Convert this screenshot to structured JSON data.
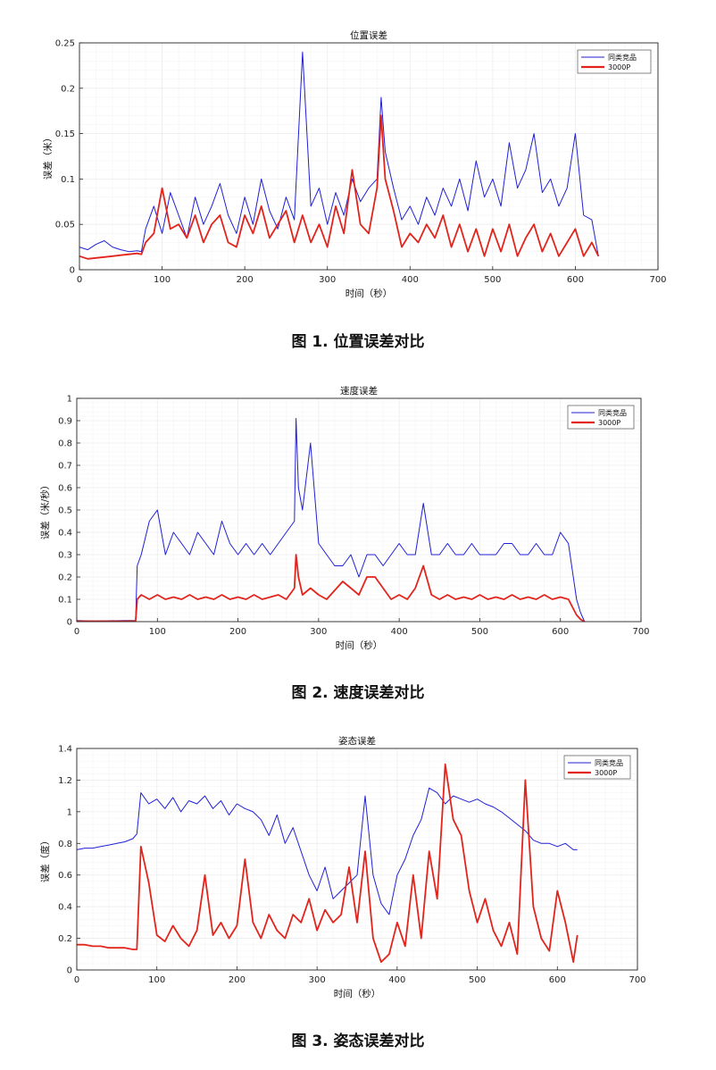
{
  "colors": {
    "competitor": "#1f1fd6",
    "product": "#e2241c",
    "grid": "#ececec",
    "axis": "#262626"
  },
  "chart_data": [
    {
      "type": "line",
      "title": "位置误差",
      "xlabel": "时间（秒）",
      "ylabel": "误差（米）",
      "xlim": [
        0,
        700
      ],
      "ylim": [
        0,
        0.25
      ],
      "xticks": [
        "0",
        "100",
        "200",
        "300",
        "400",
        "500",
        "600",
        "700"
      ],
      "yticks": [
        "0",
        "0.05",
        "0.1",
        "0.15",
        "0.2",
        "0.25"
      ],
      "grid": true,
      "legend": "top-right",
      "series": [
        {
          "name": "同类竞品",
          "color": "#1f1fd6",
          "x": [
            0,
            10,
            20,
            30,
            40,
            50,
            60,
            70,
            75,
            80,
            90,
            100,
            110,
            120,
            130,
            140,
            150,
            160,
            170,
            180,
            190,
            200,
            210,
            220,
            230,
            240,
            250,
            260,
            270,
            280,
            290,
            300,
            310,
            320,
            330,
            340,
            350,
            360,
            365,
            370,
            380,
            390,
            400,
            410,
            420,
            430,
            440,
            450,
            460,
            470,
            480,
            490,
            500,
            510,
            520,
            530,
            540,
            550,
            560,
            570,
            580,
            590,
            600,
            610,
            620,
            628
          ],
          "y": [
            0.025,
            0.022,
            0.028,
            0.032,
            0.025,
            0.022,
            0.02,
            0.021,
            0.02,
            0.045,
            0.07,
            0.04,
            0.085,
            0.06,
            0.035,
            0.08,
            0.05,
            0.07,
            0.095,
            0.06,
            0.04,
            0.08,
            0.05,
            0.1,
            0.065,
            0.045,
            0.08,
            0.055,
            0.24,
            0.07,
            0.09,
            0.05,
            0.085,
            0.06,
            0.1,
            0.075,
            0.09,
            0.1,
            0.19,
            0.13,
            0.09,
            0.055,
            0.07,
            0.05,
            0.08,
            0.06,
            0.09,
            0.07,
            0.1,
            0.065,
            0.12,
            0.08,
            0.1,
            0.07,
            0.14,
            0.09,
            0.11,
            0.15,
            0.085,
            0.1,
            0.07,
            0.09,
            0.15,
            0.06,
            0.055,
            0.015
          ]
        },
        {
          "name": "3000P",
          "color": "#e2241c",
          "x": [
            0,
            10,
            20,
            30,
            40,
            50,
            60,
            70,
            75,
            80,
            90,
            100,
            110,
            120,
            130,
            140,
            150,
            160,
            170,
            180,
            190,
            200,
            210,
            220,
            230,
            240,
            250,
            260,
            270,
            280,
            290,
            300,
            310,
            320,
            330,
            340,
            350,
            360,
            365,
            370,
            380,
            390,
            400,
            410,
            420,
            430,
            440,
            450,
            460,
            470,
            480,
            490,
            500,
            510,
            520,
            530,
            540,
            550,
            560,
            570,
            580,
            590,
            600,
            610,
            620,
            628
          ],
          "y": [
            0.015,
            0.012,
            0.013,
            0.014,
            0.015,
            0.016,
            0.017,
            0.018,
            0.017,
            0.03,
            0.04,
            0.09,
            0.045,
            0.05,
            0.035,
            0.06,
            0.03,
            0.05,
            0.06,
            0.03,
            0.025,
            0.06,
            0.04,
            0.07,
            0.035,
            0.05,
            0.065,
            0.03,
            0.06,
            0.03,
            0.05,
            0.025,
            0.07,
            0.04,
            0.11,
            0.05,
            0.04,
            0.09,
            0.17,
            0.1,
            0.065,
            0.025,
            0.04,
            0.03,
            0.05,
            0.035,
            0.06,
            0.025,
            0.05,
            0.02,
            0.045,
            0.015,
            0.045,
            0.02,
            0.05,
            0.015,
            0.035,
            0.05,
            0.02,
            0.04,
            0.015,
            0.03,
            0.045,
            0.015,
            0.03,
            0.015
          ]
        }
      ]
    },
    {
      "type": "line",
      "title": "速度误差",
      "xlabel": "时间（秒）",
      "ylabel": "误差（米/秒）",
      "xlim": [
        0,
        700
      ],
      "ylim": [
        0,
        1
      ],
      "xticks": [
        "0",
        "100",
        "200",
        "300",
        "400",
        "500",
        "600",
        "700"
      ],
      "yticks": [
        "0",
        "0.1",
        "0.2",
        "0.3",
        "0.4",
        "0.5",
        "0.6",
        "0.7",
        "0.8",
        "0.9",
        "1"
      ],
      "grid": true,
      "legend": "top-right",
      "series": [
        {
          "name": "同类竞品",
          "color": "#1f1fd6",
          "x": [
            0,
            20,
            40,
            60,
            73,
            75,
            80,
            90,
            100,
            110,
            120,
            130,
            140,
            150,
            160,
            170,
            180,
            190,
            200,
            210,
            220,
            230,
            240,
            250,
            260,
            270,
            272,
            275,
            280,
            290,
            300,
            310,
            320,
            330,
            340,
            350,
            360,
            370,
            380,
            390,
            400,
            410,
            420,
            430,
            440,
            450,
            460,
            470,
            480,
            490,
            500,
            510,
            520,
            530,
            540,
            550,
            560,
            570,
            580,
            590,
            600,
            610,
            620,
            625,
            630
          ],
          "y": [
            0.005,
            0.003,
            0.004,
            0.005,
            0.005,
            0.25,
            0.3,
            0.45,
            0.5,
            0.3,
            0.4,
            0.35,
            0.3,
            0.4,
            0.35,
            0.3,
            0.45,
            0.35,
            0.3,
            0.35,
            0.3,
            0.35,
            0.3,
            0.35,
            0.4,
            0.45,
            0.91,
            0.6,
            0.5,
            0.8,
            0.35,
            0.3,
            0.25,
            0.25,
            0.3,
            0.2,
            0.3,
            0.3,
            0.25,
            0.3,
            0.35,
            0.3,
            0.3,
            0.53,
            0.3,
            0.3,
            0.35,
            0.3,
            0.3,
            0.35,
            0.3,
            0.3,
            0.3,
            0.35,
            0.35,
            0.3,
            0.3,
            0.35,
            0.3,
            0.3,
            0.4,
            0.35,
            0.1,
            0.04,
            0.0
          ]
        },
        {
          "name": "3000P",
          "color": "#e2241c",
          "x": [
            0,
            20,
            40,
            60,
            73,
            75,
            80,
            90,
            100,
            110,
            120,
            130,
            140,
            150,
            160,
            170,
            180,
            190,
            200,
            210,
            220,
            230,
            240,
            250,
            260,
            270,
            272,
            275,
            280,
            290,
            300,
            310,
            320,
            330,
            340,
            350,
            360,
            370,
            380,
            390,
            400,
            410,
            420,
            430,
            440,
            450,
            460,
            470,
            480,
            490,
            500,
            510,
            520,
            530,
            540,
            550,
            560,
            570,
            580,
            590,
            600,
            610,
            620,
            625,
            630
          ],
          "y": [
            0.002,
            0.002,
            0.002,
            0.002,
            0.003,
            0.1,
            0.12,
            0.1,
            0.12,
            0.1,
            0.11,
            0.1,
            0.12,
            0.1,
            0.11,
            0.1,
            0.12,
            0.1,
            0.11,
            0.1,
            0.12,
            0.1,
            0.11,
            0.12,
            0.1,
            0.15,
            0.3,
            0.2,
            0.12,
            0.15,
            0.12,
            0.1,
            0.14,
            0.18,
            0.15,
            0.12,
            0.2,
            0.2,
            0.15,
            0.1,
            0.12,
            0.1,
            0.15,
            0.25,
            0.12,
            0.1,
            0.12,
            0.1,
            0.11,
            0.1,
            0.12,
            0.1,
            0.11,
            0.1,
            0.12,
            0.1,
            0.11,
            0.1,
            0.12,
            0.1,
            0.11,
            0.1,
            0.03,
            0.01,
            0.0
          ]
        }
      ]
    },
    {
      "type": "line",
      "title": "姿态误差",
      "xlabel": "时间（秒）",
      "ylabel": "误差（度）",
      "xlim": [
        0,
        700
      ],
      "ylim": [
        0,
        1.4
      ],
      "xticks": [
        "0",
        "100",
        "200",
        "300",
        "400",
        "500",
        "600",
        "700"
      ],
      "yticks": [
        "0",
        "0.2",
        "0.4",
        "0.6",
        "0.8",
        "1",
        "1.2",
        "1.4"
      ],
      "grid": true,
      "legend": "top-right",
      "series": [
        {
          "name": "同类竞品",
          "color": "#1f1fd6",
          "x": [
            0,
            10,
            20,
            30,
            40,
            50,
            60,
            70,
            75,
            80,
            90,
            100,
            110,
            120,
            130,
            140,
            150,
            160,
            170,
            180,
            190,
            200,
            210,
            220,
            230,
            240,
            250,
            260,
            270,
            280,
            290,
            300,
            310,
            320,
            330,
            340,
            350,
            360,
            370,
            380,
            390,
            400,
            410,
            420,
            430,
            440,
            450,
            460,
            470,
            480,
            490,
            500,
            510,
            520,
            530,
            540,
            550,
            560,
            570,
            580,
            590,
            600,
            610,
            620,
            625
          ],
          "y": [
            0.76,
            0.77,
            0.77,
            0.78,
            0.79,
            0.8,
            0.81,
            0.83,
            0.86,
            1.12,
            1.05,
            1.08,
            1.02,
            1.09,
            1.0,
            1.07,
            1.05,
            1.1,
            1.02,
            1.07,
            0.98,
            1.05,
            1.02,
            1.0,
            0.95,
            0.85,
            0.98,
            0.8,
            0.9,
            0.75,
            0.6,
            0.5,
            0.65,
            0.45,
            0.5,
            0.55,
            0.6,
            1.1,
            0.6,
            0.42,
            0.35,
            0.6,
            0.7,
            0.85,
            0.95,
            1.15,
            1.12,
            1.05,
            1.1,
            1.08,
            1.06,
            1.08,
            1.05,
            1.03,
            1.0,
            0.96,
            0.92,
            0.88,
            0.82,
            0.8,
            0.8,
            0.78,
            0.8,
            0.76,
            0.76
          ]
        },
        {
          "name": "3000P",
          "color": "#e2241c",
          "x": [
            0,
            10,
            20,
            30,
            40,
            50,
            60,
            70,
            75,
            80,
            90,
            100,
            110,
            120,
            130,
            140,
            150,
            160,
            170,
            180,
            190,
            200,
            210,
            220,
            230,
            240,
            250,
            260,
            270,
            280,
            290,
            300,
            310,
            320,
            330,
            340,
            350,
            360,
            370,
            380,
            390,
            400,
            410,
            420,
            430,
            440,
            450,
            460,
            470,
            480,
            490,
            500,
            510,
            520,
            530,
            540,
            550,
            560,
            570,
            580,
            590,
            600,
            610,
            620,
            625
          ],
          "y": [
            0.16,
            0.16,
            0.15,
            0.15,
            0.14,
            0.14,
            0.14,
            0.13,
            0.13,
            0.78,
            0.55,
            0.22,
            0.18,
            0.28,
            0.2,
            0.15,
            0.25,
            0.6,
            0.22,
            0.3,
            0.2,
            0.28,
            0.7,
            0.3,
            0.2,
            0.35,
            0.25,
            0.2,
            0.35,
            0.3,
            0.45,
            0.25,
            0.38,
            0.3,
            0.35,
            0.65,
            0.3,
            0.75,
            0.2,
            0.05,
            0.1,
            0.3,
            0.15,
            0.6,
            0.2,
            0.75,
            0.45,
            1.3,
            0.95,
            0.85,
            0.5,
            0.3,
            0.45,
            0.25,
            0.15,
            0.3,
            0.1,
            1.2,
            0.4,
            0.2,
            0.12,
            0.5,
            0.3,
            0.05,
            0.22
          ]
        }
      ]
    }
  ],
  "captions": [
    "图 1.  位置误差对比",
    "图 2.  速度误差对比",
    "图 3.  姿态误差对比"
  ]
}
